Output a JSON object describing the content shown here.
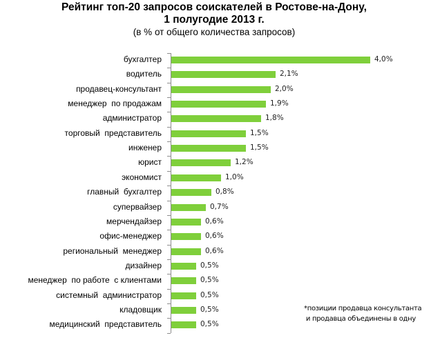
{
  "chart_data": {
    "type": "bar",
    "orientation": "horizontal",
    "title": "Рейтинг топ-20 запросов соискателей в Ростове-на-Дону,",
    "title_line2": "1 полугодие 2013 г.",
    "subtitle": "(в % от общего количества запросов)",
    "xlabel": "",
    "ylabel": "",
    "unit": "%",
    "grid": false,
    "legend": null,
    "bar_color": "#7fcf3b",
    "categories": [
      "бухгалтер",
      "водитель",
      "продавец-консультант",
      "менеджер  по продажам",
      "администратор",
      "торговый  представитель",
      "инженер",
      "юрист",
      "экономист",
      "главный  бухгалтер",
      "супервайзер",
      "мерчендайзер",
      "офис-менеджер",
      "региональный  менеджер",
      "дизайнер",
      "менеджер  по работе  с клиентами",
      "системный  администратор",
      "кладовщик",
      "медицинский  представитель"
    ],
    "values": [
      4.0,
      2.1,
      2.0,
      1.9,
      1.8,
      1.5,
      1.5,
      1.2,
      1.0,
      0.8,
      0.7,
      0.6,
      0.6,
      0.6,
      0.5,
      0.5,
      0.5,
      0.5,
      0.5
    ],
    "value_labels": [
      "4,0%",
      "2,1%",
      "2,0%",
      "1,9%",
      "1,8%",
      "1,5%",
      "1,5%",
      "1,2%",
      "1,0%",
      "0,8%",
      "0,7%",
      "0,6%",
      "0,6%",
      "0,6%",
      "0,5%",
      "0,5%",
      "0,5%",
      "0,5%",
      "0,5%"
    ],
    "annotation": "*позиции продавца консультанта и продавца объединены в одну"
  },
  "note": {
    "line1": "*позиции продавца консультанта",
    "line2": " и продавца объединены в одну"
  }
}
